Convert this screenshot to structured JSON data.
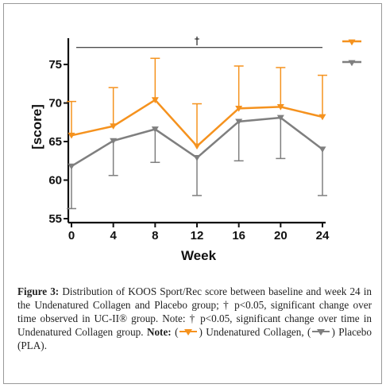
{
  "chart_data": {
    "type": "line",
    "title": "",
    "xlabel": "Week",
    "ylabel": "[score]",
    "x": [
      0,
      4,
      8,
      12,
      16,
      20,
      24
    ],
    "xticks": [
      "0",
      "4",
      "8",
      "12",
      "16",
      "20",
      "24"
    ],
    "yticks": [
      "55",
      "60",
      "65",
      "70",
      "75"
    ],
    "xlim": [
      0,
      24
    ],
    "ylim": [
      55,
      78
    ],
    "grid": false,
    "legend_position": "top-right",
    "series": [
      {
        "color": "#f5921e",
        "marker": "triangle-down",
        "values": [
          65.8,
          67.0,
          70.4,
          64.4,
          69.3,
          69.5,
          68.2
        ],
        "error_upper": [
          70.2,
          72.0,
          75.8,
          69.9,
          74.8,
          74.6,
          73.6
        ],
        "error_direction": "up"
      },
      {
        "color": "#7f7f7f",
        "marker": "triangle-down",
        "values": [
          61.8,
          65.1,
          66.6,
          62.9,
          67.6,
          68.1,
          64.0
        ],
        "error_lower": [
          56.3,
          60.6,
          62.3,
          58.0,
          62.5,
          62.8,
          58.0
        ],
        "error_direction": "down"
      }
    ],
    "annotations": [
      {
        "text": "†",
        "type": "significance-bar",
        "from_x": 0,
        "to_x": 24,
        "y": 77.2
      }
    ]
  },
  "caption": {
    "figure_label": "Figure 3:",
    "text_main": " Distribution of KOOS Sport/Rec score between baseline and week 24 in the Undenatured Collagen and Placebo group; † p<0.05, significant change over time observed in UC-II® group. Note: † p<0.05, significant change over time in Undenatured Collagen group. ",
    "note_label": "Note:",
    "legend_open_1": " (",
    "legend_item_1": ") Undenatured Collagen, (",
    "legend_item_2": ") Placebo (PLA)."
  }
}
